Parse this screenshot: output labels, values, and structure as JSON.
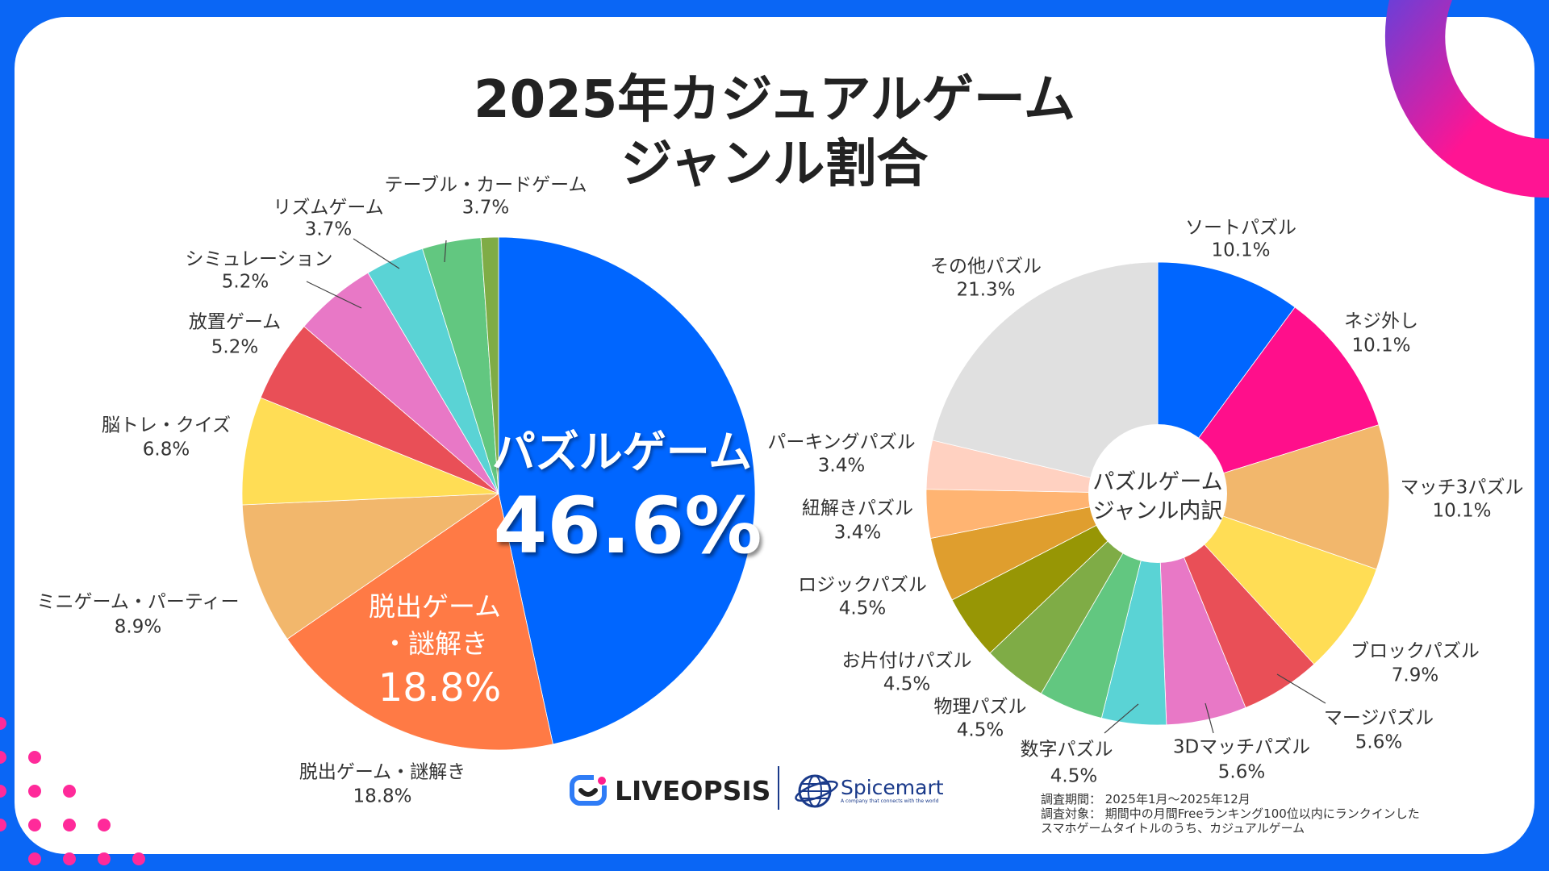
{
  "title_line1": "2025年カジュアルゲーム",
  "title_line2": "ジャンル割合",
  "colors": {
    "frame": "#0a66f5",
    "accent_pink": "#ff1493"
  },
  "chart_data": [
    {
      "type": "pie",
      "slices": [
        {
          "label": "パズルゲーム",
          "value": 46.6,
          "display": "46.6%",
          "color": "#0066ff"
        },
        {
          "label": "脱出ゲーム・謎解き",
          "value": 18.8,
          "display": "18.8%",
          "color": "#ff7a45"
        },
        {
          "label": "ミニゲーム・パーティー",
          "value": 8.9,
          "display": "8.9%",
          "color": "#f2b76c"
        },
        {
          "label": "脳トレ・クイズ",
          "value": 6.8,
          "display": "6.8%",
          "color": "#ffdd55"
        },
        {
          "label": "放置ゲーム",
          "value": 5.2,
          "display": "5.2%",
          "color": "#e94f57"
        },
        {
          "label": "シミュレーション",
          "value": 5.2,
          "display": "5.2%",
          "color": "#e878c6"
        },
        {
          "label": "リズムゲーム",
          "value": 3.7,
          "display": "3.7%",
          "color": "#5ad3d5"
        },
        {
          "label": "テーブル・カードゲーム",
          "value": 3.7,
          "display": "3.7%",
          "color": "#62c780"
        },
        {
          "label": "",
          "value": 1.1,
          "color": "#7fac46"
        }
      ],
      "inner_labels": {
        "puzzle_name": "パズルゲーム",
        "puzzle_value": "46.6%",
        "escape_line1": "脱出ゲーム",
        "escape_line2": "・謎解き",
        "escape_value": "18.8%"
      }
    },
    {
      "type": "pie",
      "donut": true,
      "center_label_line1": "パズルゲーム",
      "center_label_line2": "ジャンル内訳",
      "slices": [
        {
          "label": "ソートパズル",
          "value": 10.1,
          "display": "10.1%",
          "color": "#0066ff"
        },
        {
          "label": "ネジ外し",
          "value": 10.1,
          "display": "10.1%",
          "color": "#ff0f8b"
        },
        {
          "label": "マッチ3パズル",
          "value": 10.1,
          "display": "10.1%",
          "color": "#f2b76c"
        },
        {
          "label": "ブロックパズル",
          "value": 7.9,
          "display": "7.9%",
          "color": "#ffdd55"
        },
        {
          "label": "マージパズル",
          "value": 5.6,
          "display": "5.6%",
          "color": "#e94f57"
        },
        {
          "label": "3Dマッチパズル",
          "value": 5.6,
          "display": "5.6%",
          "color": "#e878c6"
        },
        {
          "label": "数字パズル",
          "value": 4.5,
          "display": "4.5%",
          "color": "#5ad3d5"
        },
        {
          "label": "",
          "value": 4.5,
          "color": "#62c780"
        },
        {
          "label": "物理パズル",
          "value": 4.5,
          "display": "4.5%",
          "color": "#7fac46"
        },
        {
          "label": "お片付けパズル",
          "value": 4.5,
          "display": "4.5%",
          "color": "#979605"
        },
        {
          "label": "ロジックパズル",
          "value": 4.5,
          "display": "4.5%",
          "color": "#df9e2e"
        },
        {
          "label": "紐解きパズル",
          "value": 3.4,
          "display": "3.4%",
          "color": "#ffb472"
        },
        {
          "label": "パーキングパズル",
          "value": 3.4,
          "display": "3.4%",
          "color": "#ffd1c1"
        },
        {
          "label": "その他パズル",
          "value": 21.3,
          "display": "21.3%",
          "color": "#e0e0e0"
        }
      ]
    }
  ],
  "footer": {
    "note_line1": "調査期間： 2025年1月～2025年12月",
    "note_line2": "調査対象： 期間中の月間Freeランキング100位以内にランクインした",
    "note_line3": "スマホゲームタイトルのうち、カジュアルゲーム",
    "logo1": "LIVEOPSIS",
    "logo2": "Spicemart",
    "logo2_tagline": "A company that connects with the world"
  }
}
